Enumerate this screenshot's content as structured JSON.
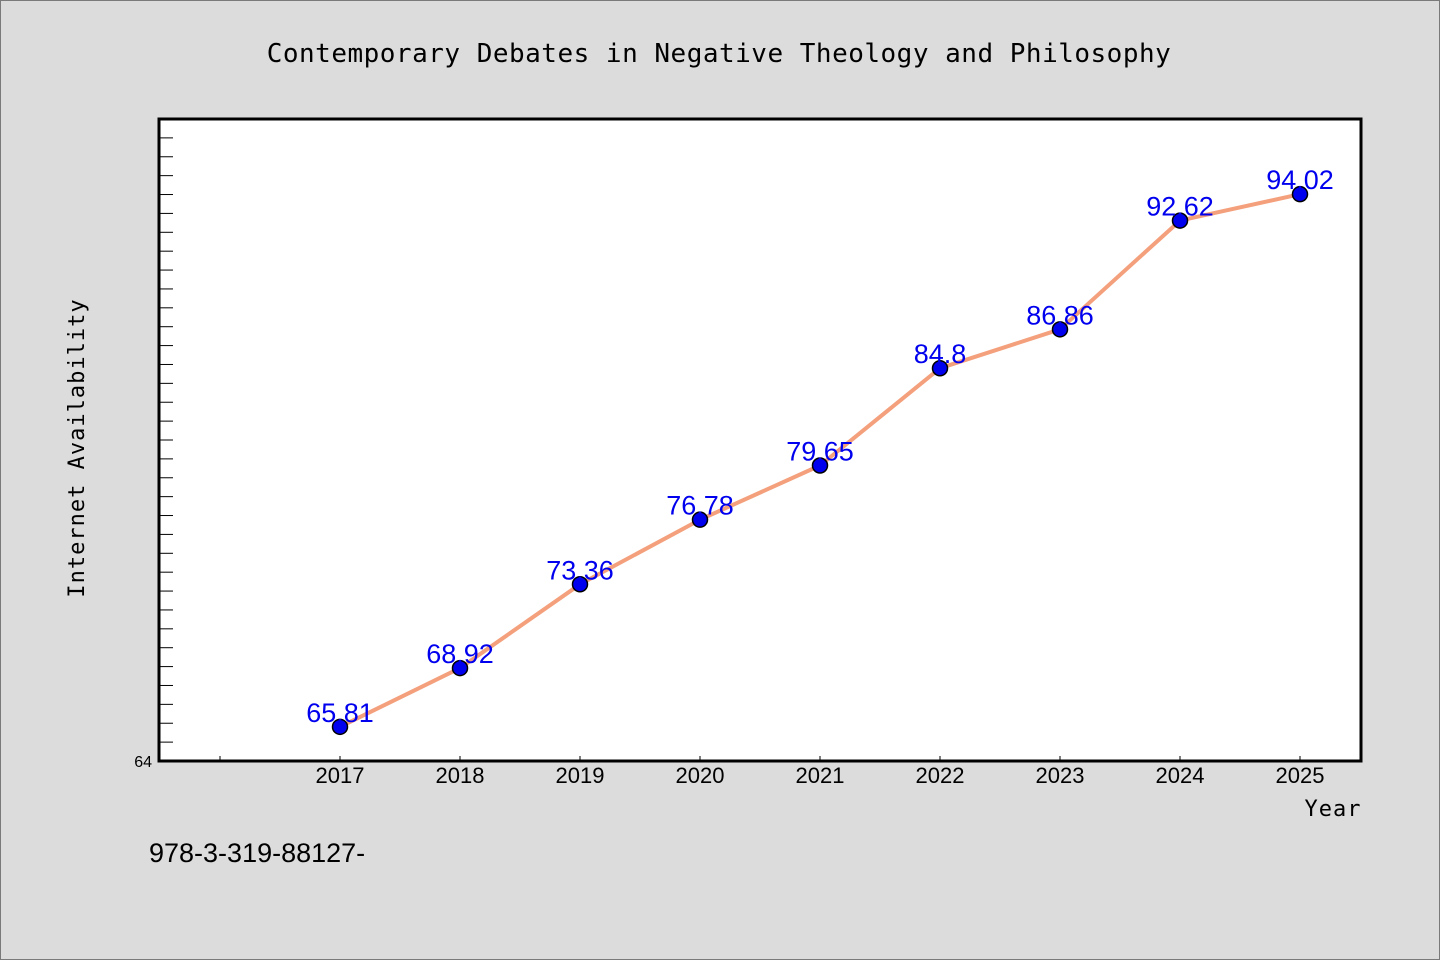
{
  "chart_data": {
    "type": "line",
    "title": "Contemporary Debates in Negative Theology and Philosophy",
    "xlabel": "Year",
    "ylabel": "Internet Availability",
    "categories": [
      "2017",
      "2018",
      "2019",
      "2020",
      "2021",
      "2022",
      "2023",
      "2024",
      "2025"
    ],
    "series": [
      {
        "values": [
          65.81,
          68.92,
          73.36,
          76.78,
          79.65,
          84.8,
          86.86,
          92.62,
          94.02
        ],
        "data_labels": [
          "65.81",
          "68.92",
          "73.36",
          "76.78",
          "79.65",
          "84.8",
          "86.86",
          "92.62",
          "94.02"
        ],
        "line_color": "#f4a07c",
        "marker_color": "#0000ee",
        "label_color": "#0000ee"
      }
    ],
    "ylim": [
      64,
      98
    ],
    "y_tick_labels": [
      "64"
    ],
    "grid": false,
    "legend": "none"
  },
  "footer_text": "978-3-319-88127-",
  "colors": {
    "background": "#dcdcdc",
    "plot_background": "#ffffff"
  }
}
